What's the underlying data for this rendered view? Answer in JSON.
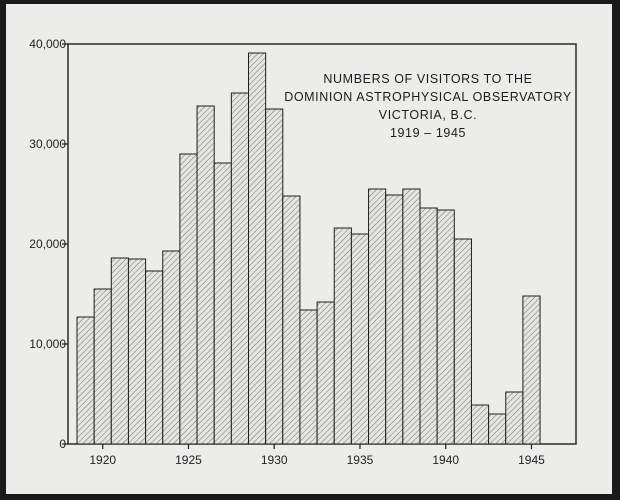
{
  "chart_data": {
    "type": "bar",
    "title_lines": [
      "NUMBERS OF VISITORS TO THE",
      "DOMINION ASTROPHYSICAL OBSERVATORY",
      "VICTORIA, B.C.",
      "1919 – 1945"
    ],
    "xlabel": "",
    "ylabel": "",
    "categories": [
      1919,
      1920,
      1921,
      1922,
      1923,
      1924,
      1925,
      1926,
      1927,
      1928,
      1929,
      1930,
      1931,
      1932,
      1933,
      1934,
      1935,
      1936,
      1937,
      1938,
      1939,
      1940,
      1941,
      1942,
      1943,
      1944,
      1945
    ],
    "values": [
      12700,
      15500,
      18600,
      18500,
      17300,
      19300,
      29000,
      33800,
      28100,
      35100,
      39100,
      33500,
      24800,
      13400,
      14200,
      21600,
      21000,
      25500,
      24900,
      25500,
      23600,
      23400,
      20500,
      3900,
      3000,
      5200,
      14800
    ],
    "ylim": [
      0,
      40000
    ],
    "y_ticks": [
      {
        "value": 0,
        "label": "0"
      },
      {
        "value": 10000,
        "label": "10,000"
      },
      {
        "value": 20000,
        "label": "20,000"
      },
      {
        "value": 30000,
        "label": "30,000"
      },
      {
        "value": 40000,
        "label": "40,000"
      }
    ],
    "x_ticks": [
      {
        "value": 1920,
        "label": "1920"
      },
      {
        "value": 1925,
        "label": "1925"
      },
      {
        "value": 1930,
        "label": "1930"
      },
      {
        "value": 1935,
        "label": "1935"
      },
      {
        "value": 1940,
        "label": "1940"
      },
      {
        "value": 1945,
        "label": "1945"
      }
    ],
    "grid": false,
    "legend": "none",
    "colors": {
      "ink": "#1e1e1e",
      "paper": "#ececea",
      "bar_fill": "#e4e4e2",
      "hatch": "#444444"
    }
  }
}
